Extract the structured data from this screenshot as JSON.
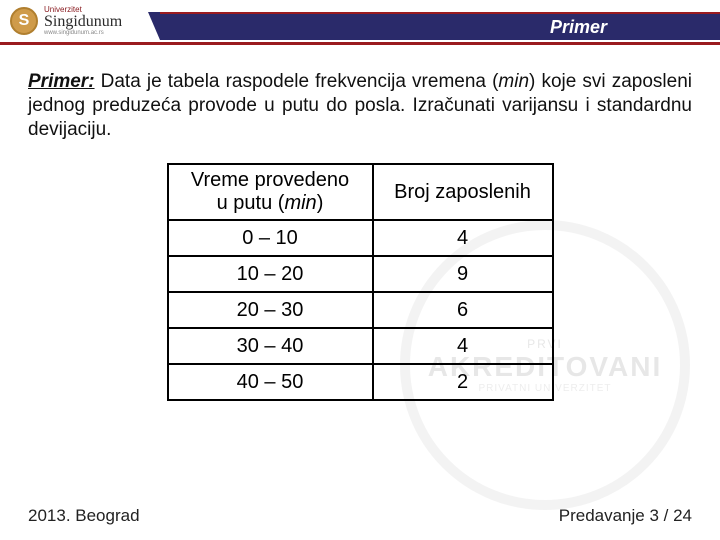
{
  "header": {
    "logo_small": "Univerzitet",
    "logo_main": "Singidunum",
    "logo_sub": "www.singidunum.ac.rs",
    "title": "Primer"
  },
  "problem": {
    "label": "Primer:",
    "text1": " Data je tabela raspodele frekvencija vremena (",
    "min": "min",
    "text2": ") koje svi zaposleni jednog preduzeća provode u putu do posla. Izračunati varijansu i standardnu devijaciju."
  },
  "table": {
    "col1_header_line1": "Vreme provedeno",
    "col1_header_line2_a": "u putu (",
    "col1_header_line2_min": "min",
    "col1_header_line2_b": ")",
    "col2_header": "Broj zaposlenih",
    "rows": [
      {
        "c1": "0 – 10",
        "c2": "4"
      },
      {
        "c1": "10 – 20",
        "c2": "9"
      },
      {
        "c1": "20 – 30",
        "c2": "6"
      },
      {
        "c1": "30 – 40",
        "c2": "4"
      },
      {
        "c1": "40 – 50",
        "c2": "2"
      }
    ]
  },
  "watermark": {
    "line1": "PRVI",
    "line2": "AKREDITOVANI",
    "line3": "PRIVATNI UNIVERZITET"
  },
  "footer": {
    "left": "2013. Beograd",
    "right": "Predavanje 3 / 24"
  }
}
